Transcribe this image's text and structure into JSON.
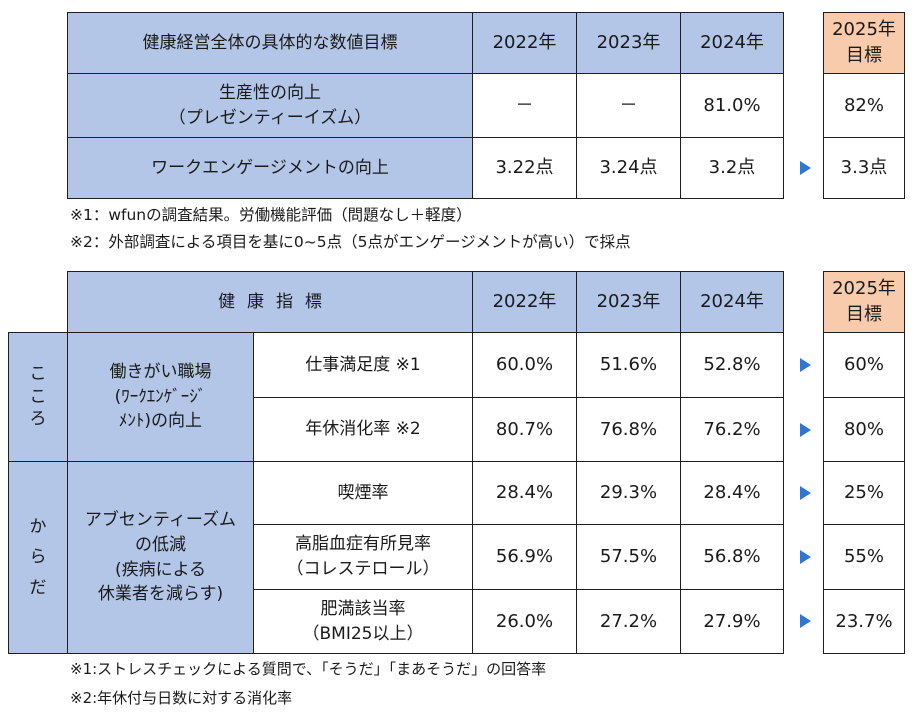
{
  "table1": {
    "header": {
      "title": "健康経営全体の具体的な数値目標",
      "year1": "2022年",
      "year2": "2023年",
      "year3": "2024年",
      "target_line1": "2025年",
      "target_line2": "目標"
    },
    "rows": [
      {
        "label_line1": "生産性の向上",
        "label_line2": "（プレゼンティーイズム）",
        "v2022": "－",
        "v2023": "－",
        "v2024": "81.0%",
        "target": "82%"
      },
      {
        "label": "ワークエンゲージメントの向上",
        "v2022": "3.22点",
        "v2023": "3.24点",
        "v2024": "3.2点",
        "target": "3.3点"
      }
    ],
    "notes": [
      "※1：wfunの調査結果。労働機能評価（問題なし＋軽度）",
      "※2：外部調査による項目を基に0~5点（5点がエンゲージメントが高い）で採点"
    ]
  },
  "table2": {
    "header": {
      "title": "健康指標",
      "year1": "2022年",
      "year2": "2023年",
      "year3": "2024年",
      "target_line1": "2025年",
      "target_line2": "目標"
    },
    "groups": [
      {
        "name_chars": [
          "こ",
          "こ",
          "ろ"
        ],
        "category_lines": [
          "働きがい職場",
          "(ﾜｰｸｴﾝｹﾞｰｼﾞ",
          "ﾒﾝﾄ)の向上"
        ],
        "rows": [
          {
            "label_line1": "仕事満足度 ※1",
            "label_line2": "",
            "v2022": "60.0%",
            "v2023": "51.6%",
            "v2024": "52.8%",
            "target": "60%"
          },
          {
            "label_line1": "年休消化率 ※2",
            "label_line2": "",
            "v2022": "80.7%",
            "v2023": "76.8%",
            "v2024": "76.2%",
            "target": "80%"
          }
        ]
      },
      {
        "name_chars": [
          "か",
          "ら",
          "だ"
        ],
        "category_lines": [
          "アブセンティーズム",
          "の低減",
          "(疾病による",
          "休業者を減らす)"
        ],
        "rows": [
          {
            "label_line1": "喫煙率",
            "label_line2": "",
            "v2022": "28.4%",
            "v2023": "29.3%",
            "v2024": "28.4%",
            "target": "25%"
          },
          {
            "label_line1": "高脂血症有所見率",
            "label_line2": "（コレステロール）",
            "v2022": "56.9%",
            "v2023": "57.5%",
            "v2024": "56.8%",
            "target": "55%"
          },
          {
            "label_line1": "肥満該当率",
            "label_line2": "（BMI25以上）",
            "v2022": "26.0%",
            "v2023": "27.2%",
            "v2024": "27.9%",
            "target": "23.7%"
          }
        ]
      }
    ],
    "notes": [
      "※1:ストレスチェックによる質問で、「そうだ」「まあそうだ」の回答率",
      "※2:年休付与日数に対する消化率"
    ]
  },
  "colors": {
    "header_blue": "#b3c6e7",
    "target_peach": "#f8cbad",
    "arrow_blue": "#2e75d6"
  },
  "icons": {
    "arrow": "right-triangle-icon"
  }
}
